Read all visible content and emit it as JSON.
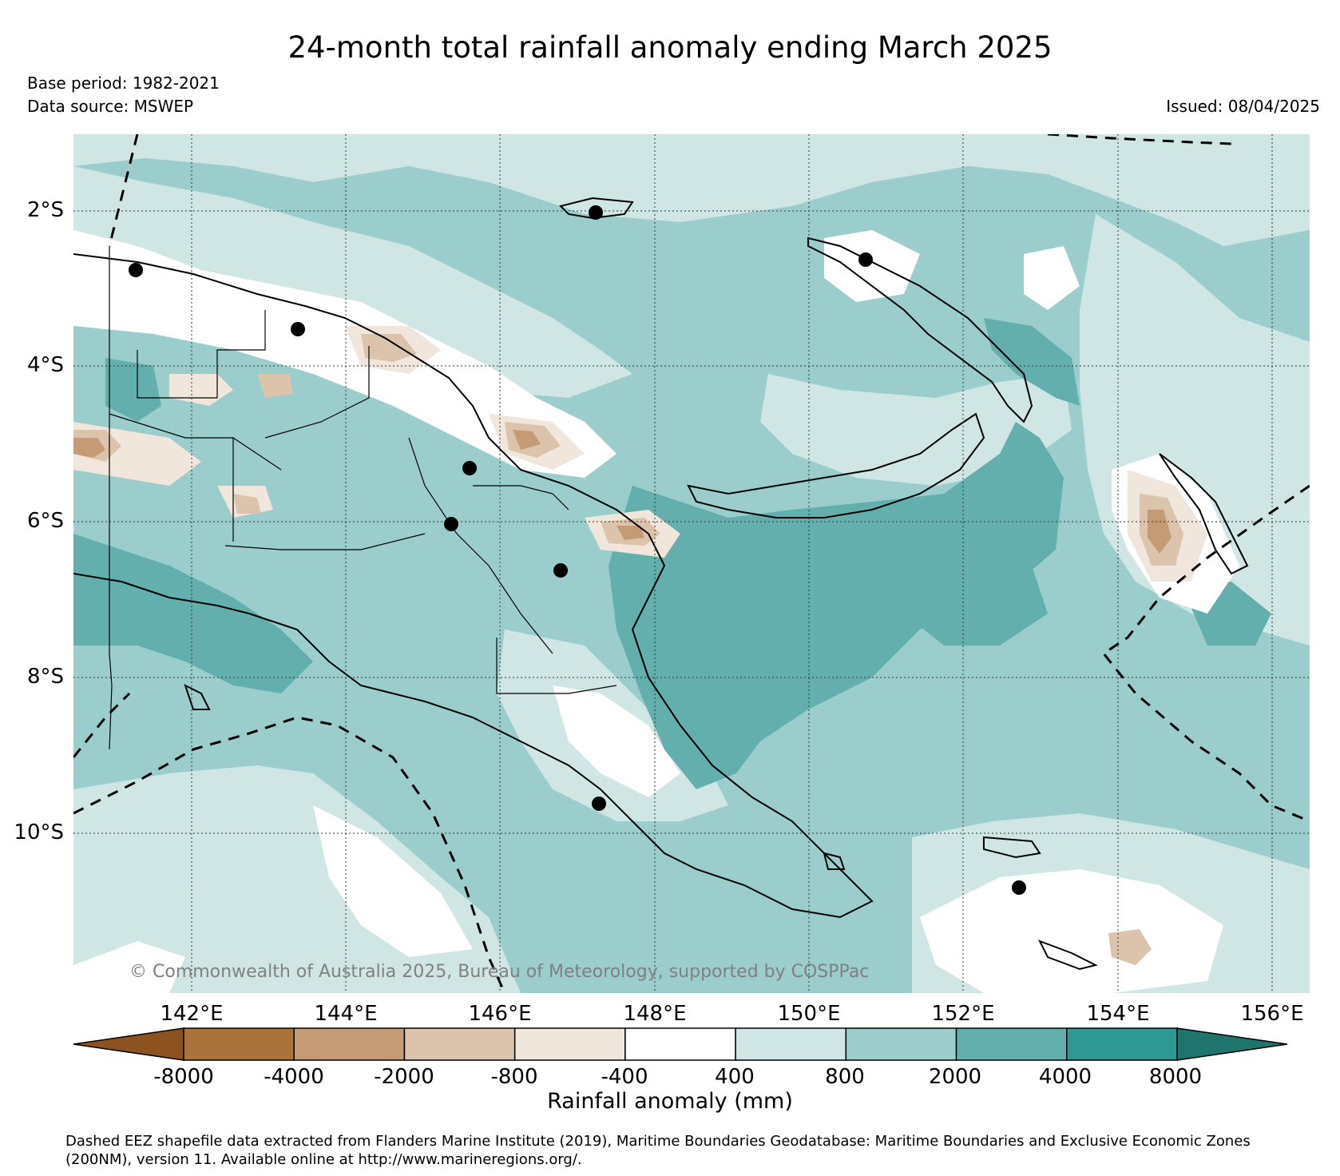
{
  "header": {
    "title": "24-month total rainfall anomaly ending March 2025",
    "base_period": "Base period: 1982-2021",
    "data_source": "Data source: MSWEP",
    "issued": "Issued: 08/04/2025"
  },
  "map": {
    "region": "Papua New Guinea",
    "copyright": "© Commonwealth of Australia 2025, Bureau of Meteorology, supported by COSPPac",
    "lat_labels": [
      "2°S",
      "4°S",
      "6°S",
      "8°S",
      "10°S"
    ],
    "lon_labels": [
      "142°E",
      "144°E",
      "146°E",
      "148°E",
      "150°E",
      "152°E",
      "154°E",
      "156°E"
    ],
    "colors": {
      "brown_dark": "#8c5220",
      "brown": "#a9733b",
      "tan": "#c49b74",
      "light_tan": "#dcc3ac",
      "pale_tan": "#f0e6dc",
      "white": "#ffffff",
      "pale_teal": "#cfe6e5",
      "light_teal": "#9ccdcd",
      "teal": "#62afae",
      "dark_teal": "#2e9994",
      "deepest_teal": "#1f746e",
      "land_outline": "#000000"
    }
  },
  "colorbar": {
    "title": "Rainfall anomaly (mm)",
    "tick_labels": [
      "-8000",
      "-4000",
      "-2000",
      "-800",
      "-400",
      "400",
      "800",
      "2000",
      "4000",
      "8000"
    ],
    "bins": [
      {
        "range": "< -8000",
        "color": "#8c5220"
      },
      {
        "range": "-8000 to -4000",
        "color": "#a9733b"
      },
      {
        "range": "-4000 to -2000",
        "color": "#c49b74"
      },
      {
        "range": "-2000 to -800",
        "color": "#dcc3ac"
      },
      {
        "range": "-800 to -400",
        "color": "#f0e6dc"
      },
      {
        "range": "-400 to 400",
        "color": "#ffffff"
      },
      {
        "range": "400 to 800",
        "color": "#cfe6e5"
      },
      {
        "range": "800 to 2000",
        "color": "#9ccdcd"
      },
      {
        "range": "2000 to 4000",
        "color": "#62afae"
      },
      {
        "range": "4000 to 8000",
        "color": "#2e9994"
      },
      {
        "range": "> 8000",
        "color": "#1f746e"
      }
    ]
  },
  "footer": {
    "note_line1": "Dashed EEZ shapefile data extracted from Flanders Marine Institute (2019), Maritime Boundaries Geodatabase: Maritime Boundaries and Exclusive Economic Zones",
    "note_line2": "(200NM), version 11. Available online at http://www.marineregions.org/."
  }
}
